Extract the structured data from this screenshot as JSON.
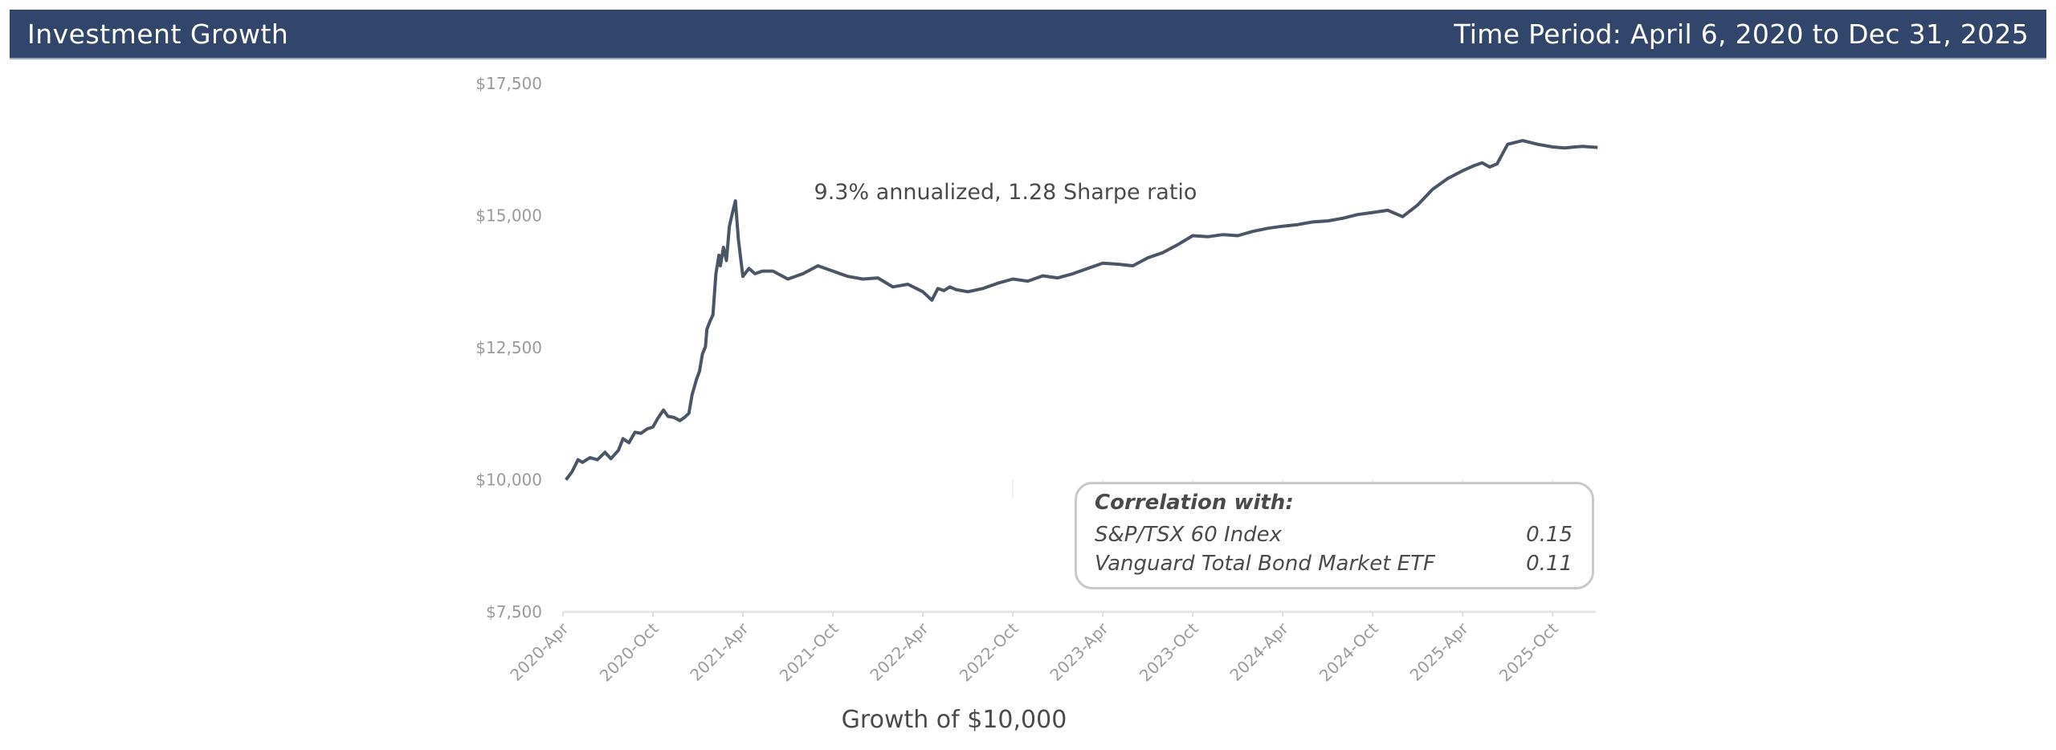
{
  "header": {
    "title": "Investment Growth",
    "period": "Time Period: April 6, 2020 to Dec 31, 2025"
  },
  "colors": {
    "header_bg": "#32466b",
    "line": "#4a5568",
    "axis_text": "#9a9a9a"
  },
  "chart_data": {
    "type": "line",
    "title": "",
    "annotation": "9.3% annualized, 1.28 Sharpe ratio",
    "xlabel": "Growth of $10,000",
    "ylabel": "",
    "ylim": [
      7500,
      17500
    ],
    "yticks": [
      7500,
      10000,
      12500,
      15000,
      17500
    ],
    "ytick_labels": [
      "$7,500",
      "$10,000",
      "$12,500",
      "$15,000",
      "$17,500"
    ],
    "xlim": [
      "2020-04",
      "2025-12-31"
    ],
    "xtick_labels": [
      "2020-Apr",
      "2020-Oct",
      "2021-Apr",
      "2021-Oct",
      "2022-Apr",
      "2022-Oct",
      "2023-Apr",
      "2023-Oct",
      "2024-Apr",
      "2024-Oct",
      "2025-Apr",
      "2025-Oct"
    ],
    "grid": false,
    "series": [
      {
        "name": "Growth of $10,000",
        "x_months_from_2020_04": [
          0.2,
          0.6,
          1.0,
          1.3,
          1.8,
          2.3,
          2.8,
          3.2,
          3.7,
          4.0,
          4.4,
          4.8,
          5.2,
          5.6,
          6.0,
          6.3,
          6.7,
          7.0,
          7.4,
          7.8,
          8.1,
          8.4,
          8.6,
          8.9,
          9.1,
          9.3,
          9.5,
          9.6,
          9.8,
          10.0,
          10.2,
          10.4,
          10.5,
          10.7,
          10.9,
          11.1,
          11.3,
          11.5,
          11.7,
          12.0,
          12.4,
          12.8,
          13.3,
          14.0,
          15.0,
          16.0,
          17.0,
          18.0,
          19.0,
          20.0,
          21.0,
          22.0,
          23.0,
          24.0,
          24.6,
          25.0,
          25.4,
          25.8,
          26.2,
          27.0,
          28.0,
          29.0,
          30.0,
          31.0,
          32.0,
          33.0,
          34.0,
          35.0,
          36.0,
          37.0,
          38.0,
          39.0,
          40.0,
          41.0,
          42.0,
          43.0,
          44.0,
          45.0,
          46.0,
          47.0,
          48.0,
          49.0,
          50.0,
          51.0,
          52.0,
          53.0,
          54.0,
          55.0,
          56.0,
          57.0,
          58.0,
          59.0,
          60.0,
          60.8,
          61.3,
          61.8,
          62.3,
          63.0,
          64.0,
          65.0,
          66.0,
          66.8,
          67.5,
          68.0,
          68.5,
          69.0
        ],
        "values": [
          10000,
          10150,
          10380,
          10330,
          10420,
          10380,
          10520,
          10400,
          10560,
          10780,
          10700,
          10900,
          10880,
          10960,
          11000,
          11150,
          11320,
          11200,
          11180,
          11120,
          11180,
          11260,
          11600,
          11900,
          12050,
          12380,
          12520,
          12850,
          13000,
          13120,
          13900,
          14250,
          14050,
          14400,
          14150,
          14800,
          15050,
          15280,
          14550,
          13850,
          14000,
          13900,
          13950,
          13950,
          13800,
          13900,
          14050,
          13950,
          13850,
          13800,
          13820,
          13650,
          13700,
          13560,
          13400,
          13620,
          13580,
          13650,
          13600,
          13560,
          13620,
          13720,
          13800,
          13760,
          13860,
          13820,
          13900,
          14000,
          14100,
          14080,
          14050,
          14200,
          14300,
          14450,
          14620,
          14600,
          14640,
          14620,
          14700,
          14760,
          14800,
          14830,
          14880,
          14900,
          14950,
          15020,
          15060,
          15100,
          14980,
          15200,
          15500,
          15700,
          15850,
          15950,
          16000,
          15920,
          15980,
          16350,
          16420,
          16350,
          16300,
          16280,
          16300,
          16310,
          16300,
          16290
        ]
      }
    ],
    "legend": {
      "title": "Correlation with:",
      "placement": "bottom-right",
      "rows": [
        {
          "name": "S&P/TSX 60 Index",
          "value": "0.15"
        },
        {
          "name": "Vanguard Total Bond Market ETF",
          "value": "0.11"
        }
      ]
    }
  }
}
